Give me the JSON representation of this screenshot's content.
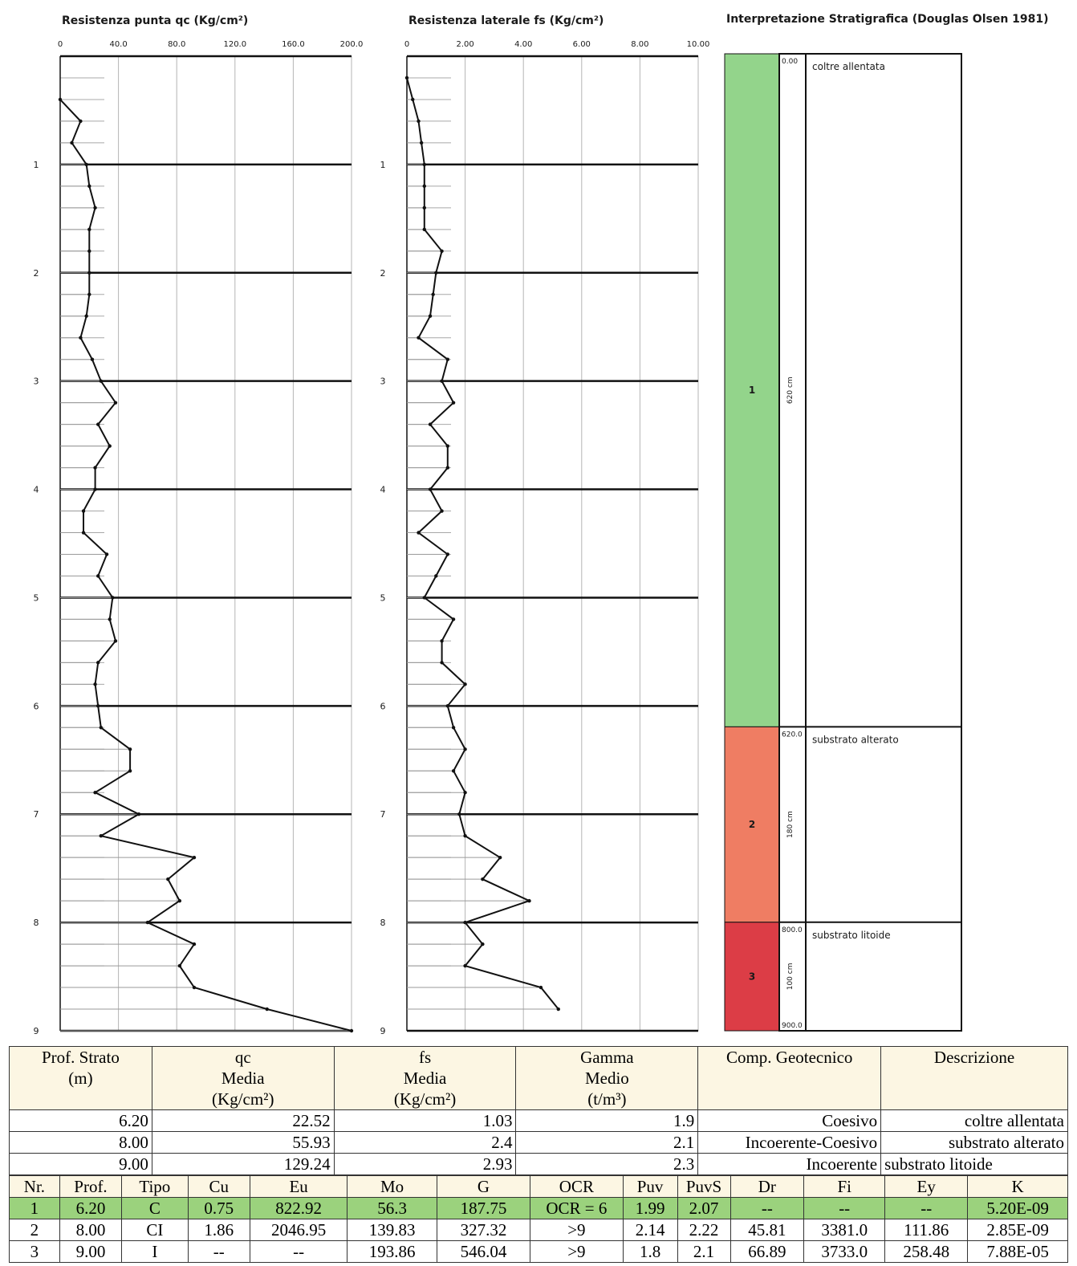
{
  "chart_data": [
    {
      "type": "line",
      "title": "Resistenza punta qc (Kg/cm²)",
      "x_ticks": [
        "0",
        "40.0",
        "80.0",
        "120.0",
        "160.0",
        "200.0"
      ],
      "xlim": [
        0,
        200
      ],
      "ylim": [
        0,
        9
      ],
      "y_ticks": [
        "1",
        "2",
        "3",
        "4",
        "5",
        "6",
        "7",
        "8",
        "9"
      ],
      "y_inverted": true,
      "grid": true,
      "points": [
        [
          0,
          0.4
        ],
        [
          14,
          0.6
        ],
        [
          8,
          0.8
        ],
        [
          18,
          1.0
        ],
        [
          20,
          1.2
        ],
        [
          24,
          1.4
        ],
        [
          20,
          1.6
        ],
        [
          20,
          1.8
        ],
        [
          20,
          2.0
        ],
        [
          20,
          2.2
        ],
        [
          18,
          2.4
        ],
        [
          14,
          2.6
        ],
        [
          22,
          2.8
        ],
        [
          28,
          3.0
        ],
        [
          38,
          3.2
        ],
        [
          26,
          3.4
        ],
        [
          34,
          3.6
        ],
        [
          24,
          3.8
        ],
        [
          24,
          4.0
        ],
        [
          16,
          4.2
        ],
        [
          16,
          4.4
        ],
        [
          32,
          4.6
        ],
        [
          26,
          4.8
        ],
        [
          36,
          5.0
        ],
        [
          34,
          5.2
        ],
        [
          38,
          5.4
        ],
        [
          26,
          5.6
        ],
        [
          24,
          5.8
        ],
        [
          26,
          6.0
        ],
        [
          28,
          6.2
        ],
        [
          48,
          6.4
        ],
        [
          48,
          6.6
        ],
        [
          24,
          6.8
        ],
        [
          54,
          7.0
        ],
        [
          28,
          7.2
        ],
        [
          92,
          7.4
        ],
        [
          74,
          7.6
        ],
        [
          82,
          7.8
        ],
        [
          60,
          8.0
        ],
        [
          92,
          8.2
        ],
        [
          82,
          8.4
        ],
        [
          92,
          8.6
        ],
        [
          142,
          8.8
        ],
        [
          200,
          9.0
        ]
      ]
    },
    {
      "type": "line",
      "title": "Resistenza laterale fs (Kg/cm²)",
      "x_ticks": [
        "0",
        "2.00",
        "4.00",
        "6.00",
        "8.00",
        "10.00"
      ],
      "xlim": [
        0,
        10
      ],
      "ylim": [
        0,
        9
      ],
      "y_ticks": [
        "1",
        "2",
        "3",
        "4",
        "5",
        "6",
        "7",
        "8",
        "9"
      ],
      "y_inverted": true,
      "grid": true,
      "points": [
        [
          0,
          0.2
        ],
        [
          0.2,
          0.4
        ],
        [
          0.4,
          0.6
        ],
        [
          0.5,
          0.8
        ],
        [
          0.6,
          1.0
        ],
        [
          0.6,
          1.2
        ],
        [
          0.6,
          1.4
        ],
        [
          0.6,
          1.6
        ],
        [
          1.2,
          1.8
        ],
        [
          1.0,
          2.0
        ],
        [
          0.9,
          2.2
        ],
        [
          0.8,
          2.4
        ],
        [
          0.4,
          2.6
        ],
        [
          1.4,
          2.8
        ],
        [
          1.2,
          3.0
        ],
        [
          1.6,
          3.2
        ],
        [
          0.8,
          3.4
        ],
        [
          1.4,
          3.6
        ],
        [
          1.4,
          3.8
        ],
        [
          0.8,
          4.0
        ],
        [
          1.2,
          4.2
        ],
        [
          0.4,
          4.4
        ],
        [
          1.4,
          4.6
        ],
        [
          1.0,
          4.8
        ],
        [
          0.6,
          5.0
        ],
        [
          1.6,
          5.2
        ],
        [
          1.2,
          5.4
        ],
        [
          1.2,
          5.6
        ],
        [
          2.0,
          5.8
        ],
        [
          1.4,
          6.0
        ],
        [
          1.6,
          6.2
        ],
        [
          2.0,
          6.4
        ],
        [
          1.6,
          6.6
        ],
        [
          2.0,
          6.8
        ],
        [
          1.8,
          7.0
        ],
        [
          2.0,
          7.2
        ],
        [
          3.2,
          7.4
        ],
        [
          2.6,
          7.6
        ],
        [
          4.2,
          7.8
        ],
        [
          2.0,
          8.0
        ],
        [
          2.6,
          8.2
        ],
        [
          2.0,
          8.4
        ],
        [
          4.6,
          8.6
        ],
        [
          5.2,
          8.8
        ]
      ]
    },
    {
      "type": "table",
      "title": "Interpretazione Stratigrafica (Douglas Olsen 1981)",
      "layers": [
        {
          "num": "1",
          "thickness": "620 cm",
          "top": "0.00",
          "top_cm": 0,
          "bottom_cm": 620,
          "desc": "coltre allentata",
          "color": "#93d48b"
        },
        {
          "num": "2",
          "thickness": "180 cm",
          "top": "620.0",
          "top_cm": 620,
          "bottom_cm": 800,
          "desc": "substrato alterato",
          "color": "#ef7d63"
        },
        {
          "num": "3",
          "thickness": "100 cm",
          "top": "800.0",
          "top_cm": 800,
          "bottom_cm": 900,
          "desc": "substrato litoide",
          "color": "#dc3d46"
        }
      ],
      "bottom_label": "900.0"
    }
  ],
  "summary": {
    "headers": [
      "Prof. Strato\n(m)",
      "qc\nMedia\n(Kg/cm²)",
      "fs\nMedia\n(Kg/cm²)",
      "Gamma\nMedio\n(t/m³)",
      "Comp. Geotecnico",
      "Descrizione"
    ],
    "rows": [
      [
        "6.20",
        "22.52",
        "1.03",
        "1.9",
        "Coesivo",
        "coltre allentata"
      ],
      [
        "8.00",
        "55.93",
        "2.4",
        "2.1",
        "Incoerente-Coesivo",
        "substrato alterato"
      ],
      [
        "9.00",
        "129.24",
        "2.93",
        "2.3",
        "Incoerente",
        "substrato litoide"
      ]
    ]
  },
  "params": {
    "headers": [
      "Nr.",
      "Prof.",
      "Tipo",
      "Cu",
      "Eu",
      "Mo",
      "G",
      "OCR",
      "Puv",
      "PuvS",
      "Dr",
      "Fi",
      "Ey",
      "K"
    ],
    "rows": [
      [
        "1",
        "6.20",
        "C",
        "0.75",
        "822.92",
        "56.3",
        "187.75",
        "OCR = 6",
        "1.99",
        "2.07",
        "--",
        "--",
        "--",
        "5.20E-09"
      ],
      [
        "2",
        "8.00",
        "CI",
        "1.86",
        "2046.95",
        "139.83",
        "327.32",
        ">9",
        "2.14",
        "2.22",
        "45.81",
        "3381.0",
        "111.86",
        "2.85E-09"
      ],
      [
        "3",
        "9.00",
        "I",
        "--",
        "--",
        "193.86",
        "546.04",
        ">9",
        "1.8",
        "2.1",
        "66.89",
        "3733.0",
        "258.48",
        "7.88E-05"
      ]
    ],
    "highlight_row_color": "#9bd27d"
  }
}
